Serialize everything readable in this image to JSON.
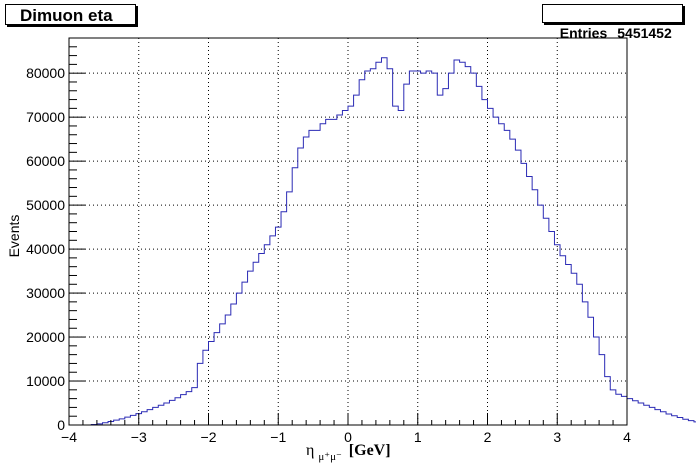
{
  "header": {
    "title": "Dimuon eta",
    "stats_label": "Entries",
    "stats_value": "5451452"
  },
  "colors": {
    "line": "#2b2bb5",
    "frame": "#000000",
    "grid": "#000000"
  },
  "chart_data": {
    "type": "line",
    "title": "Dimuon eta",
    "xlabel": "η",
    "xlabel_sub": "μ⁺μ⁻",
    "xlabel_unit": "[GeV]",
    "ylabel": "Events",
    "xlim": [
      -4,
      4
    ],
    "ylim": [
      0,
      88000
    ],
    "xticks": [
      -4,
      -3,
      -2,
      -1,
      0,
      1,
      2,
      3,
      4
    ],
    "yticks": [
      0,
      10000,
      20000,
      30000,
      40000,
      50000,
      60000,
      70000,
      80000
    ],
    "grid": true,
    "bin_width": 0.08,
    "x_start": -4,
    "values": [
      0,
      0,
      0,
      0,
      100,
      250,
      500,
      800,
      1100,
      1400,
      1800,
      2200,
      2600,
      3000,
      3500,
      4000,
      4500,
      5000,
      5600,
      6200,
      6900,
      7600,
      8500,
      14000,
      17000,
      19000,
      21000,
      23000,
      25000,
      27500,
      30000,
      32500,
      35000,
      37000,
      39000,
      41000,
      43000,
      45000,
      48500,
      53000,
      58500,
      63000,
      65500,
      67000,
      67000,
      68500,
      69500,
      69500,
      70500,
      71500,
      72500,
      75000,
      78500,
      80500,
      81000,
      82500,
      83500,
      81000,
      72500,
      71500,
      77500,
      80500,
      80500,
      80000,
      80500,
      80000,
      75000,
      76500,
      80000,
      83000,
      82500,
      81500,
      80000,
      77000,
      74000,
      72000,
      70000,
      68500,
      67000,
      65000,
      62500,
      59500,
      56500,
      53500,
      50000,
      47000,
      44000,
      41000,
      38500,
      36500,
      34500,
      32000,
      28000,
      24500,
      20000,
      16000,
      11000,
      8000,
      7000,
      6500,
      6000,
      5500,
      5000,
      4500,
      4000,
      3500,
      3000,
      2500,
      2100,
      1700,
      1300,
      1000,
      700,
      400,
      0,
      0,
      0,
      0,
      0,
      0
    ]
  }
}
